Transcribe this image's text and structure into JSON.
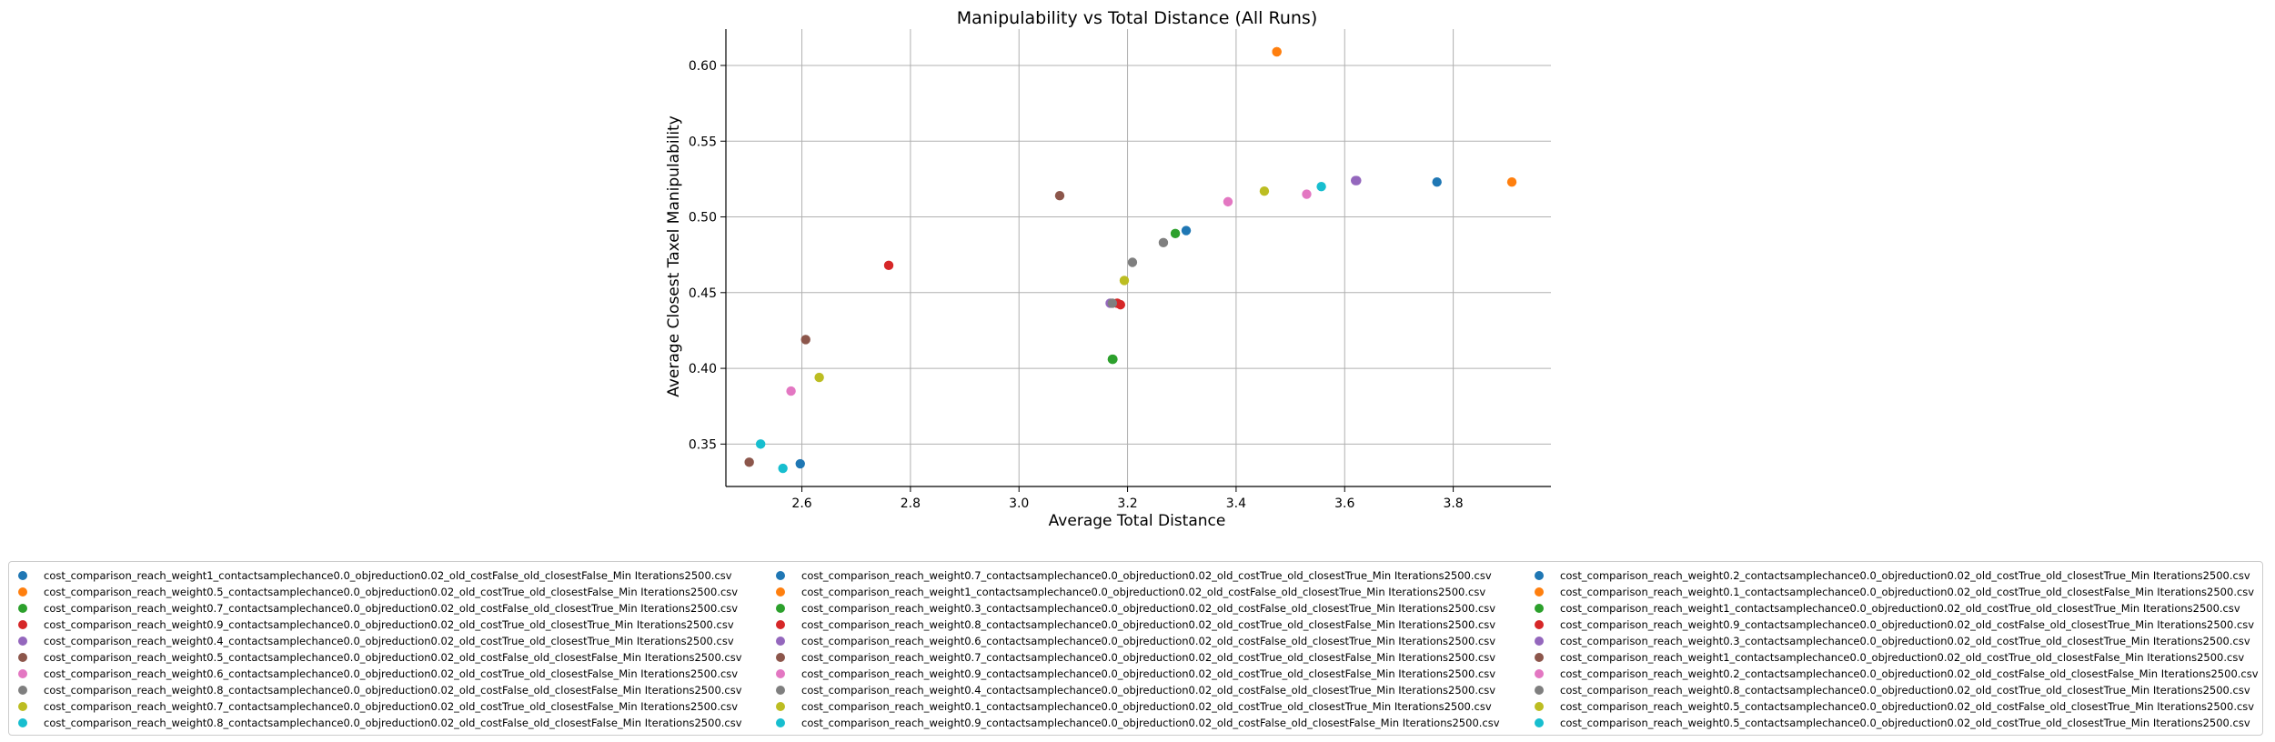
{
  "colors": [
    "#1f77b4",
    "#ff7f0e",
    "#2ca02c",
    "#d62728",
    "#9467bd",
    "#8c564b",
    "#e377c2",
    "#7f7f7f",
    "#bcbd22",
    "#17becf"
  ],
  "chart_data": {
    "type": "scatter",
    "title": "Manipulability vs Total Distance (All Runs)",
    "xlabel": "Average Total Distance",
    "ylabel": "Average Closest Taxel Manipulability",
    "xlim": [
      2.46,
      3.98
    ],
    "ylim": [
      0.322,
      0.624
    ],
    "xticks": [
      2.6,
      2.8,
      3.0,
      3.2,
      3.4,
      3.6,
      3.8
    ],
    "xtick_labels": [
      "2.6",
      "2.8",
      "3.0",
      "3.2",
      "3.4",
      "3.6",
      "3.8"
    ],
    "yticks": [
      0.35,
      0.4,
      0.45,
      0.5,
      0.55,
      0.6
    ],
    "ytick_labels": [
      "0.35",
      "0.40",
      "0.45",
      "0.50",
      "0.55",
      "0.60"
    ],
    "grid": true,
    "legend_placement": "below plot, 3 columns",
    "series": [
      {
        "name": "cost_comparison_reach_weight1_contactsamplechance0.0_objreduction0.02_old_costFalse_old_closestFalse_Min Iterations2500.csv",
        "x": [
          2.597
        ],
        "y": [
          0.337
        ]
      },
      {
        "name": "cost_comparison_reach_weight0.5_contactsamplechance0.0_objreduction0.02_old_costTrue_old_closestFalse_Min Iterations2500.csv",
        "x": [
          3.475
        ],
        "y": [
          0.609
        ]
      },
      {
        "name": "cost_comparison_reach_weight0.7_contactsamplechance0.0_objreduction0.02_old_costFalse_old_closestTrue_Min Iterations2500.csv",
        "x": [
          3.172
        ],
        "y": [
          0.406
        ]
      },
      {
        "name": "cost_comparison_reach_weight0.9_contactsamplechance0.0_objreduction0.02_old_costTrue_old_closestTrue_Min Iterations2500.csv",
        "x": [
          2.76
        ],
        "y": [
          0.468
        ]
      },
      {
        "name": "cost_comparison_reach_weight0.4_contactsamplechance0.0_objreduction0.02_old_costTrue_old_closestTrue_Min Iterations2500.csv",
        "x": [
          3.168
        ],
        "y": [
          0.443
        ]
      },
      {
        "name": "cost_comparison_reach_weight0.5_contactsamplechance0.0_objreduction0.02_old_costFalse_old_closestFalse_Min Iterations2500.csv",
        "x": [
          2.503
        ],
        "y": [
          0.338
        ]
      },
      {
        "name": "cost_comparison_reach_weight0.6_contactsamplechance0.0_objreduction0.02_old_costTrue_old_closestFalse_Min Iterations2500.csv",
        "x": [
          2.58
        ],
        "y": [
          0.385
        ]
      },
      {
        "name": "cost_comparison_reach_weight0.8_contactsamplechance0.0_objreduction0.02_old_costFalse_old_closestFalse_Min Iterations2500.csv",
        "x": [
          3.209
        ],
        "y": [
          0.47
        ]
      },
      {
        "name": "cost_comparison_reach_weight0.7_contactsamplechance0.0_objreduction0.02_old_costTrue_old_closestFalse_Min Iterations2500.csv",
        "x": [
          2.632
        ],
        "y": [
          0.394
        ]
      },
      {
        "name": "cost_comparison_reach_weight0.8_contactsamplechance0.0_objreduction0.02_old_costFalse_old_closestFalse_Min Iterations2500.csv",
        "x": [
          2.524
        ],
        "y": [
          0.35
        ]
      },
      {
        "name": "cost_comparison_reach_weight0.7_contactsamplechance0.0_objreduction0.02_old_costTrue_old_closestTrue_Min Iterations2500.csv",
        "x": [
          3.77
        ],
        "y": [
          0.523
        ]
      },
      {
        "name": "cost_comparison_reach_weight1_contactsamplechance0.0_objreduction0.02_old_costFalse_old_closestTrue_Min Iterations2500.csv",
        "x": [
          3.908
        ],
        "y": [
          0.523
        ]
      },
      {
        "name": "cost_comparison_reach_weight0.3_contactsamplechance0.0_objreduction0.02_old_costFalse_old_closestTrue_Min Iterations2500.csv",
        "x": [
          3.288
        ],
        "y": [
          0.489
        ]
      },
      {
        "name": "cost_comparison_reach_weight0.8_contactsamplechance0.0_objreduction0.02_old_costTrue_old_closestFalse_Min Iterations2500.csv",
        "x": [
          3.181
        ],
        "y": [
          0.443
        ]
      },
      {
        "name": "cost_comparison_reach_weight0.6_contactsamplechance0.0_objreduction0.02_old_costFalse_old_closestTrue_Min Iterations2500.csv",
        "x": [
          3.62
        ],
        "y": [
          0.524
        ]
      },
      {
        "name": "cost_comparison_reach_weight0.7_contactsamplechance0.0_objreduction0.02_old_costTrue_old_closestFalse_Min Iterations2500.csv",
        "x": [
          3.075
        ],
        "y": [
          0.514
        ]
      },
      {
        "name": "cost_comparison_reach_weight0.9_contactsamplechance0.0_objreduction0.02_old_costTrue_old_closestFalse_Min Iterations2500.csv",
        "x": [
          3.385
        ],
        "y": [
          0.51
        ]
      },
      {
        "name": "cost_comparison_reach_weight0.4_contactsamplechance0.0_objreduction0.02_old_costFalse_old_closestTrue_Min Iterations2500.csv",
        "x": [
          3.266
        ],
        "y": [
          0.483
        ]
      },
      {
        "name": "cost_comparison_reach_weight0.1_contactsamplechance0.0_objreduction0.02_old_costTrue_old_closestTrue_Min Iterations2500.csv",
        "x": [
          3.194
        ],
        "y": [
          0.458
        ]
      },
      {
        "name": "cost_comparison_reach_weight0.9_contactsamplechance0.0_objreduction0.02_old_costFalse_old_closestFalse_Min Iterations2500.csv",
        "x": [
          2.565
        ],
        "y": [
          0.334
        ]
      },
      {
        "name": "cost_comparison_reach_weight0.2_contactsamplechance0.0_objreduction0.02_old_costTrue_old_closestTrue_Min Iterations2500.csv",
        "x": [
          3.308
        ],
        "y": [
          0.491
        ]
      },
      {
        "name": "cost_comparison_reach_weight0.1_contactsamplechance0.0_objreduction0.02_old_costTrue_old_closestFalse_Min Iterations2500.csv",
        "x": [
          3.475
        ],
        "y": [
          0.609
        ]
      },
      {
        "name": "cost_comparison_reach_weight1_contactsamplechance0.0_objreduction0.02_old_costTrue_old_closestTrue_Min Iterations2500.csv",
        "x": [
          3.173
        ],
        "y": [
          0.406
        ]
      },
      {
        "name": "cost_comparison_reach_weight0.9_contactsamplechance0.0_objreduction0.02_old_costFalse_old_closestTrue_Min Iterations2500.csv",
        "x": [
          3.187
        ],
        "y": [
          0.442
        ]
      },
      {
        "name": "cost_comparison_reach_weight0.3_contactsamplechance0.0_objreduction0.02_old_costTrue_old_closestTrue_Min Iterations2500.csv",
        "x": [
          3.622
        ],
        "y": [
          0.524
        ]
      },
      {
        "name": "cost_comparison_reach_weight1_contactsamplechance0.0_objreduction0.02_old_costTrue_old_closestFalse_Min Iterations2500.csv",
        "x": [
          2.607
        ],
        "y": [
          0.419
        ]
      },
      {
        "name": "cost_comparison_reach_weight0.2_contactsamplechance0.0_objreduction0.02_old_costFalse_old_closestFalse_Min Iterations2500.csv",
        "x": [
          3.53
        ],
        "y": [
          0.515
        ]
      },
      {
        "name": "cost_comparison_reach_weight0.8_contactsamplechance0.0_objreduction0.02_old_costTrue_old_closestTrue_Min Iterations2500.csv",
        "x": [
          3.172
        ],
        "y": [
          0.443
        ]
      },
      {
        "name": "cost_comparison_reach_weight0.5_contactsamplechance0.0_objreduction0.02_old_costFalse_old_closestTrue_Min Iterations2500.csv",
        "x": [
          3.452
        ],
        "y": [
          0.517
        ]
      },
      {
        "name": "cost_comparison_reach_weight0.5_contactsamplechance0.0_objreduction0.02_old_costTrue_old_closestTrue_Min Iterations2500.csv",
        "x": [
          3.557
        ],
        "y": [
          0.52
        ]
      }
    ]
  }
}
